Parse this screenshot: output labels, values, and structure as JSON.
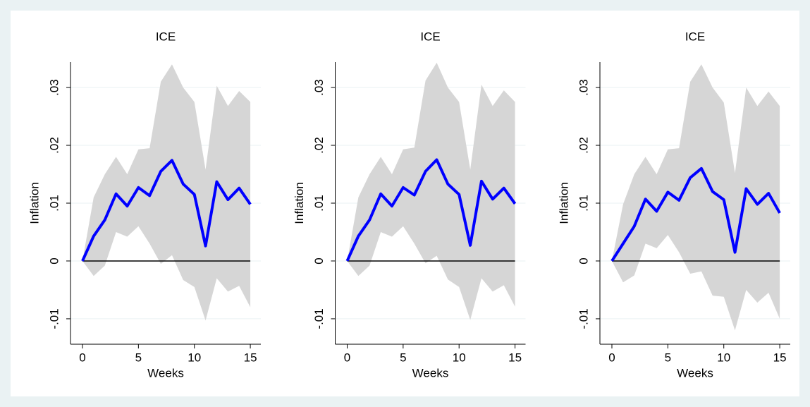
{
  "chart_data": [
    {
      "type": "line",
      "title": "ICE",
      "x_label": "Weeks",
      "y_label": "Inflation",
      "x": [
        0,
        1,
        2,
        3,
        4,
        5,
        6,
        7,
        8,
        9,
        10,
        11,
        12,
        13,
        14,
        15
      ],
      "values": [
        0,
        0.0043,
        0.0071,
        0.0116,
        0.0095,
        0.0127,
        0.0113,
        0.0155,
        0.0174,
        0.0133,
        0.0115,
        0.0026,
        0.0137,
        0.0106,
        0.0126,
        0.0098
      ],
      "band_upper": [
        0,
        0.011,
        0.015,
        0.018,
        0.015,
        0.0193,
        0.0195,
        0.031,
        0.034,
        0.03,
        0.0275,
        0.0158,
        0.0303,
        0.0268,
        0.0294,
        0.0275
      ],
      "band_lower": [
        0,
        -0.0026,
        -0.0008,
        0.005,
        0.0042,
        0.006,
        0.003,
        -0.0005,
        0.001,
        -0.0033,
        -0.0045,
        -0.0103,
        -0.003,
        -0.0053,
        -0.0043,
        -0.008
      ],
      "color": "#0000ff",
      "band_color": "#d6d6d6",
      "hline": 0,
      "xlim": [
        -1.07,
        15.94
      ],
      "ylim": [
        -0.0144,
        0.0344
      ],
      "xticks": [
        0,
        5,
        10,
        15
      ],
      "yticks": [
        {
          "value": -0.01,
          "label": "-.01"
        },
        0,
        {
          "value": 0.01,
          "label": ".01"
        },
        {
          "value": 0.02,
          "label": ".02"
        },
        {
          "value": 0.03,
          "label": ".03"
        }
      ],
      "grid": true
    },
    {
      "type": "line",
      "title": "ICE",
      "x_label": "Weeks",
      "y_label": "Inflation",
      "x": [
        0,
        1,
        2,
        3,
        4,
        5,
        6,
        7,
        8,
        9,
        10,
        11,
        12,
        13,
        14,
        15
      ],
      "values": [
        0,
        0.0043,
        0.0071,
        0.0116,
        0.0095,
        0.0127,
        0.0114,
        0.0155,
        0.0175,
        0.0133,
        0.0115,
        0.0027,
        0.0138,
        0.0107,
        0.0126,
        0.0099
      ],
      "band_upper": [
        0,
        0.011,
        0.015,
        0.018,
        0.015,
        0.0193,
        0.0196,
        0.0312,
        0.0343,
        0.03,
        0.0275,
        0.0158,
        0.0305,
        0.0268,
        0.0295,
        0.0275
      ],
      "band_lower": [
        0,
        -0.0026,
        -0.0008,
        0.005,
        0.0042,
        0.006,
        0.003,
        -0.0004,
        0.0009,
        -0.0032,
        -0.0045,
        -0.0102,
        -0.003,
        -0.0053,
        -0.0042,
        -0.0079
      ],
      "color": "#0000ff",
      "band_color": "#d6d6d6",
      "hline": 0,
      "xlim": [
        -1.07,
        15.94
      ],
      "ylim": [
        -0.0144,
        0.0344
      ],
      "xticks": [
        0,
        5,
        10,
        15
      ],
      "yticks": [
        {
          "value": -0.01,
          "label": "-.01"
        },
        0,
        {
          "value": 0.01,
          "label": ".01"
        },
        {
          "value": 0.02,
          "label": ".02"
        },
        {
          "value": 0.03,
          "label": ".03"
        }
      ],
      "grid": true
    },
    {
      "type": "line",
      "title": "ICE",
      "x_label": "Weeks",
      "y_label": "Inflation",
      "x": [
        0,
        1,
        2,
        3,
        4,
        5,
        6,
        7,
        8,
        9,
        10,
        11,
        12,
        13,
        14,
        15
      ],
      "values": [
        0,
        0.003,
        0.006,
        0.0107,
        0.0086,
        0.0119,
        0.0105,
        0.0144,
        0.016,
        0.012,
        0.0106,
        0.0015,
        0.0125,
        0.0098,
        0.0117,
        0.0083
      ],
      "band_upper": [
        0,
        0.0098,
        0.015,
        0.018,
        0.015,
        0.0193,
        0.0195,
        0.031,
        0.034,
        0.03,
        0.0274,
        0.0152,
        0.03,
        0.0268,
        0.0293,
        0.0268
      ],
      "band_lower": [
        0,
        -0.0037,
        -0.0025,
        0.003,
        0.0022,
        0.0045,
        0.0015,
        -0.0022,
        -0.0018,
        -0.006,
        -0.0062,
        -0.012,
        -0.005,
        -0.0072,
        -0.0055,
        -0.01
      ],
      "color": "#0000ff",
      "band_color": "#d6d6d6",
      "hline": 0,
      "xlim": [
        -1.07,
        15.94
      ],
      "ylim": [
        -0.0144,
        0.0344
      ],
      "xticks": [
        0,
        5,
        10,
        15
      ],
      "yticks": [
        {
          "value": -0.01,
          "label": "-.01"
        },
        0,
        {
          "value": 0.01,
          "label": ".01"
        },
        {
          "value": 0.02,
          "label": ".02"
        },
        {
          "value": 0.03,
          "label": ".03"
        }
      ],
      "grid": true
    }
  ]
}
